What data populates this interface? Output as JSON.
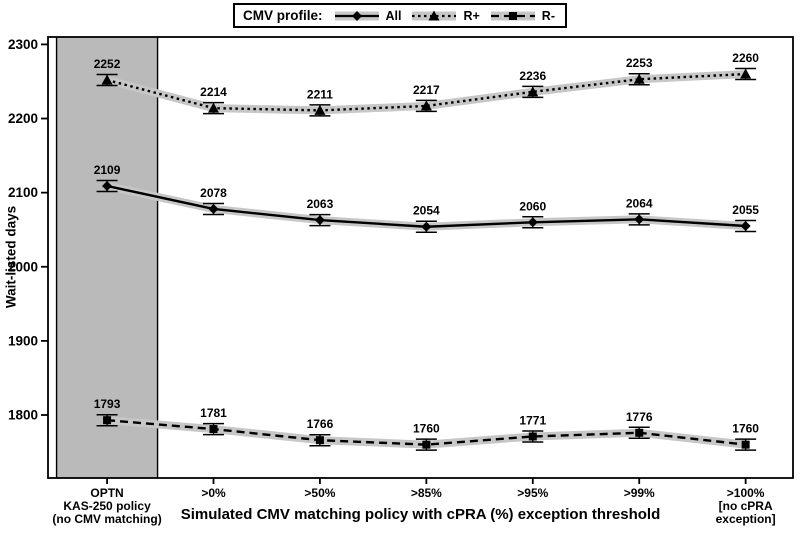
{
  "chart_data": {
    "type": "line",
    "legend_title": "CMV profile:",
    "legend_position": "top-center",
    "xlabel": "Simulated CMV matching policy with cPRA (%) exception threshold",
    "ylabel": "Wait-listed days",
    "ylim": [
      1715,
      2310
    ],
    "yticks": [
      1800,
      1900,
      2000,
      2100,
      2200,
      2300
    ],
    "grid": false,
    "point_labels_shown": true,
    "categories": [
      "OPTN\nKAS-250 policy\n(no CMV matching)",
      ">0%",
      ">50%",
      ">85%",
      ">95%",
      ">99%",
      ">100%\n[no cPRA\nexception]"
    ],
    "shaded_region": {
      "category_index": 0,
      "color": "#bababa",
      "note": "highlights current OPTN policy column"
    },
    "confidence_band_color": "#c7c7c7",
    "line_color": "#000000",
    "series": [
      {
        "name": "All",
        "marker": "diamond",
        "line_style": "solid",
        "values": [
          2109,
          2078,
          2063,
          2054,
          2060,
          2064,
          2055
        ]
      },
      {
        "name": "R+",
        "marker": "triangle",
        "line_style": "dotted",
        "values": [
          2252,
          2214,
          2211,
          2217,
          2236,
          2253,
          2260
        ]
      },
      {
        "name": "R-",
        "marker": "square",
        "line_style": "dashed",
        "values": [
          1793,
          1781,
          1766,
          1760,
          1771,
          1776,
          1760
        ]
      }
    ]
  }
}
